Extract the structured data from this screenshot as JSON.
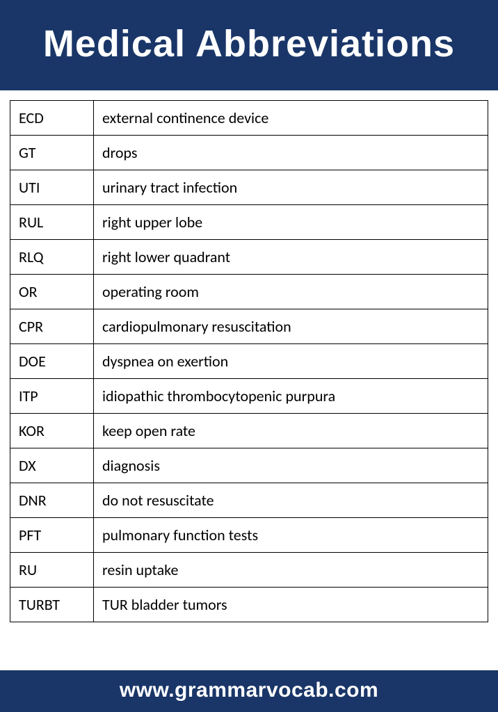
{
  "header": {
    "title": "Medical Abbreviations",
    "background_color": "#1a3668",
    "text_color": "#ffffff",
    "title_fontsize": 54
  },
  "table": {
    "border_color": "#000000",
    "cell_fontsize": 22,
    "rows": [
      {
        "abbr": "ECD",
        "def": "external continence device"
      },
      {
        "abbr": "GT",
        "def": "drops"
      },
      {
        "abbr": "UTI",
        "def": "urinary tract infection"
      },
      {
        "abbr": "RUL",
        "def": "right upper lobe"
      },
      {
        "abbr": "RLQ",
        "def": "right lower quadrant"
      },
      {
        "abbr": "OR",
        "def": "operating room"
      },
      {
        "abbr": "CPR",
        "def": "cardiopulmonary resuscitation"
      },
      {
        "abbr": "DOE",
        "def": "dyspnea on exertion"
      },
      {
        "abbr": "ITP",
        "def": "idiopathic thrombocytopenic purpura"
      },
      {
        "abbr": "KOR",
        "def": "keep open rate"
      },
      {
        "abbr": "DX",
        "def": "diagnosis"
      },
      {
        "abbr": "DNR",
        "def": "do not resuscitate"
      },
      {
        "abbr": "PFT",
        "def": "pulmonary function tests"
      },
      {
        "abbr": "RU",
        "def": "resin uptake"
      },
      {
        "abbr": "TURBT",
        "def": "TUR bladder tumors"
      }
    ]
  },
  "footer": {
    "url": "www.grammarvocab.com",
    "background_color": "#1a3668",
    "text_color": "#ffffff",
    "fontsize": 30
  }
}
